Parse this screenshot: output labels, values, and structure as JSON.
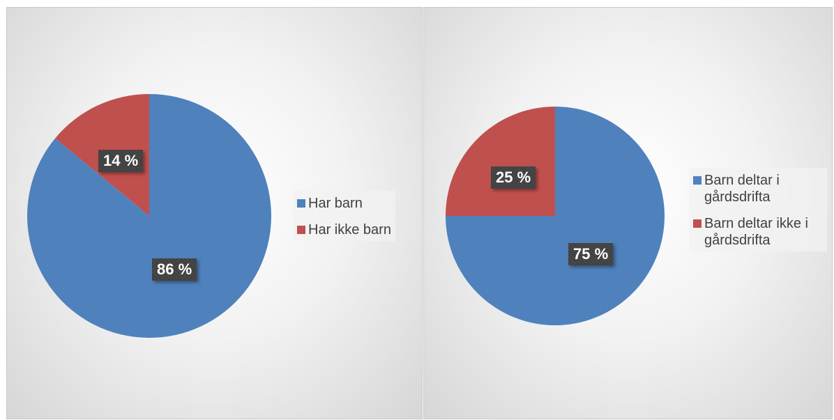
{
  "chart_data": [
    {
      "type": "pie",
      "title": "",
      "slices": [
        {
          "label": "Har barn",
          "value": 86,
          "display": "86 %",
          "color": "#4f81bd"
        },
        {
          "label": "Har ikke barn",
          "value": 14,
          "display": "14 %",
          "color": "#c0504d"
        }
      ],
      "legend": "right"
    },
    {
      "type": "pie",
      "title": "",
      "slices": [
        {
          "label": "Barn deltar i gårdsdrifta",
          "value": 75,
          "display": "75 %",
          "color": "#4f81bd"
        },
        {
          "label": "Barn deltar ikke i gårdsdrifta",
          "value": 25,
          "display": "25 %",
          "color": "#c0504d"
        }
      ],
      "legend": "right"
    }
  ]
}
